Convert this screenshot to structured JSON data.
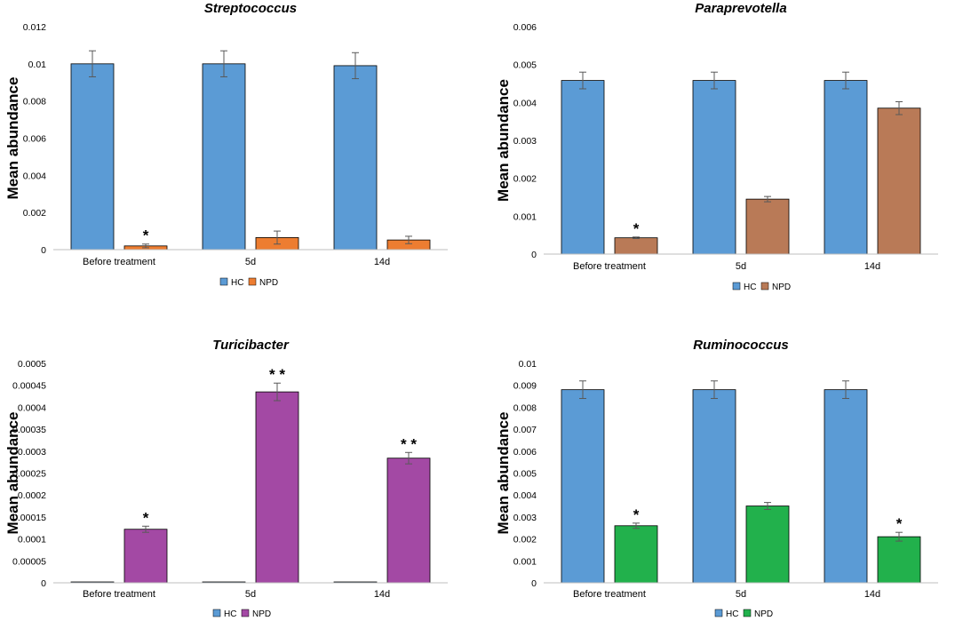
{
  "chart_data": [
    {
      "type": "bar",
      "title": "Streptococcus",
      "ylabel": "Mean abundance",
      "xlabel": "",
      "ylim": [
        0,
        0.012
      ],
      "yticks": [
        "0",
        "0.002",
        "0.004",
        "0.006",
        "0.008",
        "0.01",
        "0.012"
      ],
      "categories": [
        "Before treatment",
        "5d",
        "14d"
      ],
      "legend_position": "bottom",
      "series": [
        {
          "name": "HC",
          "color": "#5b9bd5",
          "values": [
            0.01,
            0.01,
            0.0099
          ],
          "errors": [
            0.0007,
            0.0007,
            0.0007
          ],
          "stars": [
            "",
            "",
            ""
          ]
        },
        {
          "name": "NPD",
          "color": "#ed7d31",
          "values": [
            0.0002,
            0.00065,
            0.00052
          ],
          "errors": [
            0.0001,
            0.00035,
            0.0002
          ],
          "stars": [
            "*",
            "",
            ""
          ]
        }
      ]
    },
    {
      "type": "bar",
      "title": "Paraprevotella",
      "ylabel": "Mean abundance",
      "xlabel": "",
      "ylim": [
        0,
        0.006
      ],
      "yticks": [
        "0",
        "0.001",
        "0.002",
        "0.003",
        "0.004",
        "0.005",
        "0.006"
      ],
      "categories": [
        "Before treatment",
        "5d",
        "14d"
      ],
      "legend_position": "bottom",
      "series": [
        {
          "name": "HC",
          "color": "#5b9bd5",
          "values": [
            0.00458,
            0.00458,
            0.00458
          ],
          "errors": [
            0.00022,
            0.00022,
            0.00022
          ],
          "stars": [
            "",
            "",
            ""
          ]
        },
        {
          "name": "NPD",
          "color": "#b97a57",
          "values": [
            0.00043,
            0.00145,
            0.00385
          ],
          "errors": [
            2e-05,
            7e-05,
            0.00017
          ],
          "stars": [
            "*",
            "",
            ""
          ]
        }
      ]
    },
    {
      "type": "bar",
      "title": "Turicibacter",
      "ylabel": "Mean abundance",
      "xlabel": "",
      "ylim": [
        0,
        0.0005
      ],
      "yticks": [
        "0",
        "0.00005",
        "0.0001",
        "0.00015",
        "0.0002",
        "0.00025",
        "0.0003",
        "0.00035",
        "0.0004",
        "0.00045",
        "0.0005"
      ],
      "categories": [
        "Before treatment",
        "5d",
        "14d"
      ],
      "legend_position": "bottom",
      "series": [
        {
          "name": "HC",
          "color": "#5b9bd5",
          "values": [
            2e-06,
            2e-06,
            2e-06
          ],
          "errors": [
            0,
            0,
            0
          ],
          "stars": [
            "",
            "",
            ""
          ]
        },
        {
          "name": "NPD",
          "color": "#a349a4",
          "values": [
            0.000122,
            0.000435,
            0.000284
          ],
          "errors": [
            7e-06,
            2e-05,
            1.3e-05
          ],
          "stars": [
            "*",
            "* *",
            "* *"
          ]
        }
      ]
    },
    {
      "type": "bar",
      "title": "Ruminococcus",
      "ylabel": "Mean abundance",
      "xlabel": "",
      "ylim": [
        0,
        0.01
      ],
      "yticks": [
        "0",
        "0.001",
        "0.002",
        "0.003",
        "0.004",
        "0.005",
        "0.006",
        "0.007",
        "0.008",
        "0.009",
        "0.01"
      ],
      "categories": [
        "Before treatment",
        "5d",
        "14d"
      ],
      "legend_position": "bottom",
      "series": [
        {
          "name": "HC",
          "color": "#5b9bd5",
          "values": [
            0.0088,
            0.0088,
            0.0088
          ],
          "errors": [
            0.0004,
            0.0004,
            0.0004
          ],
          "stars": [
            "",
            "",
            ""
          ]
        },
        {
          "name": "NPD",
          "color": "#22b14c",
          "values": [
            0.0026,
            0.0035,
            0.0021
          ],
          "errors": [
            0.00012,
            0.00016,
            0.0002
          ],
          "stars": [
            "*",
            "",
            "*"
          ]
        }
      ]
    }
  ]
}
